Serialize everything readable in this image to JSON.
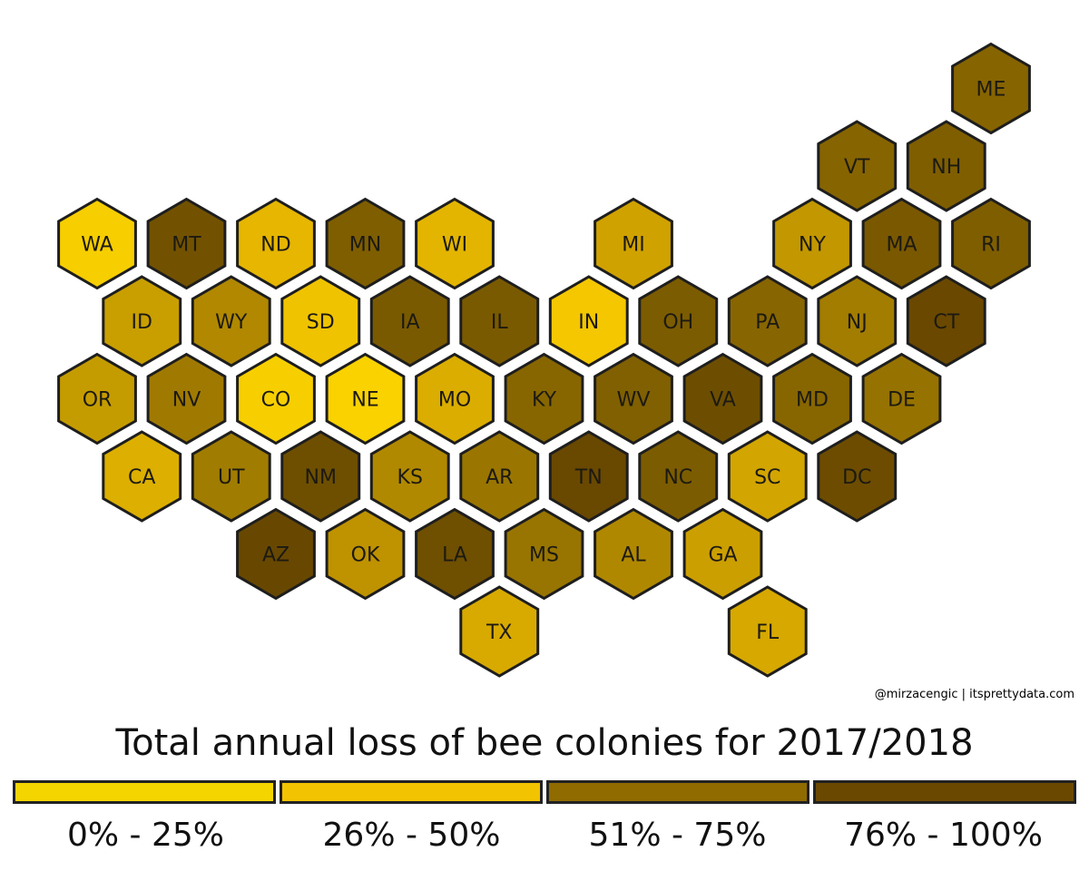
{
  "title": "Total annual loss of bee colonies for 2017/2018",
  "credit": "@mirzacengic | itsprettydata.com",
  "legend": [
    {
      "label": "0% - 25%",
      "color": "#f4d500"
    },
    {
      "label": "26% - 50%",
      "color": "#f2c300"
    },
    {
      "label": "51% - 75%",
      "color": "#8f6b00"
    },
    {
      "label": "76% - 100%",
      "color": "#6b4800"
    }
  ],
  "states": [
    {
      "code": "ME",
      "col": 10,
      "row": 0,
      "color": "#866400"
    },
    {
      "code": "VT",
      "col": 9,
      "row": 1,
      "color": "#866400"
    },
    {
      "code": "NH",
      "col": 10,
      "row": 1,
      "color": "#7f5e00"
    },
    {
      "code": "WA",
      "col": 0,
      "row": 2,
      "color": "#f7ce00"
    },
    {
      "code": "MT",
      "col": 1,
      "row": 2,
      "color": "#725200"
    },
    {
      "code": "ND",
      "col": 2,
      "row": 2,
      "color": "#e6b600"
    },
    {
      "code": "MN",
      "col": 3,
      "row": 2,
      "color": "#7f5e00"
    },
    {
      "code": "WI",
      "col": 4,
      "row": 2,
      "color": "#e3b500"
    },
    {
      "code": "MI",
      "col": 6,
      "row": 2,
      "color": "#d0a200"
    },
    {
      "code": "NY",
      "col": 8,
      "row": 2,
      "color": "#c29700"
    },
    {
      "code": "MA",
      "col": 9,
      "row": 2,
      "color": "#7a5800"
    },
    {
      "code": "RI",
      "col": 10,
      "row": 2,
      "color": "#7f5e00"
    },
    {
      "code": "ID",
      "col": 0,
      "row": 3,
      "color": "#c99f00"
    },
    {
      "code": "WY",
      "col": 1,
      "row": 3,
      "color": "#b18800"
    },
    {
      "code": "SD",
      "col": 2,
      "row": 3,
      "color": "#f0c300"
    },
    {
      "code": "IA",
      "col": 3,
      "row": 3,
      "color": "#7a5a00"
    },
    {
      "code": "IL",
      "col": 4,
      "row": 3,
      "color": "#7a5a00"
    },
    {
      "code": "IN",
      "col": 5,
      "row": 3,
      "color": "#f4c700"
    },
    {
      "code": "OH",
      "col": 6,
      "row": 3,
      "color": "#7c5c00"
    },
    {
      "code": "PA",
      "col": 7,
      "row": 3,
      "color": "#876500"
    },
    {
      "code": "NJ",
      "col": 8,
      "row": 3,
      "color": "#a37d00"
    },
    {
      "code": "CT",
      "col": 9,
      "row": 3,
      "color": "#6a4800"
    },
    {
      "code": "OR",
      "col": 0,
      "row": 4,
      "color": "#c59c00"
    },
    {
      "code": "NV",
      "col": 1,
      "row": 4,
      "color": "#a07a00"
    },
    {
      "code": "CO",
      "col": 2,
      "row": 4,
      "color": "#f7cf00"
    },
    {
      "code": "NE",
      "col": 3,
      "row": 4,
      "color": "#f9d200"
    },
    {
      "code": "MO",
      "col": 4,
      "row": 4,
      "color": "#dbad00"
    },
    {
      "code": "KY",
      "col": 5,
      "row": 4,
      "color": "#876600"
    },
    {
      "code": "WV",
      "col": 6,
      "row": 4,
      "color": "#806000"
    },
    {
      "code": "VA",
      "col": 7,
      "row": 4,
      "color": "#6d4e00"
    },
    {
      "code": "MD",
      "col": 8,
      "row": 4,
      "color": "#876600"
    },
    {
      "code": "DE",
      "col": 9,
      "row": 4,
      "color": "#967200"
    },
    {
      "code": "CA",
      "col": 0,
      "row": 5,
      "color": "#dcaf00"
    },
    {
      "code": "UT",
      "col": 1,
      "row": 5,
      "color": "#a07c00"
    },
    {
      "code": "NM",
      "col": 2,
      "row": 5,
      "color": "#6e4f00"
    },
    {
      "code": "KS",
      "col": 3,
      "row": 5,
      "color": "#b18900"
    },
    {
      "code": "AR",
      "col": 4,
      "row": 5,
      "color": "#9a7600"
    },
    {
      "code": "TN",
      "col": 5,
      "row": 5,
      "color": "#694800"
    },
    {
      "code": "NC",
      "col": 6,
      "row": 5,
      "color": "#7c5c00"
    },
    {
      "code": "SC",
      "col": 7,
      "row": 5,
      "color": "#d2a500"
    },
    {
      "code": "DC",
      "col": 8,
      "row": 5,
      "color": "#6d4c00"
    },
    {
      "code": "AZ",
      "col": 2,
      "row": 6,
      "color": "#684800"
    },
    {
      "code": "OK",
      "col": 3,
      "row": 6,
      "color": "#bf9200"
    },
    {
      "code": "LA",
      "col": 4,
      "row": 6,
      "color": "#6f4f00"
    },
    {
      "code": "MS",
      "col": 5,
      "row": 6,
      "color": "#987500"
    },
    {
      "code": "AL",
      "col": 6,
      "row": 6,
      "color": "#b08800"
    },
    {
      "code": "GA",
      "col": 7,
      "row": 6,
      "color": "#cc9f00"
    },
    {
      "code": "TX",
      "col": 4,
      "row": 7,
      "color": "#d8aa00"
    },
    {
      "code": "FL",
      "col": 7,
      "row": 7,
      "color": "#d6a800"
    }
  ]
}
